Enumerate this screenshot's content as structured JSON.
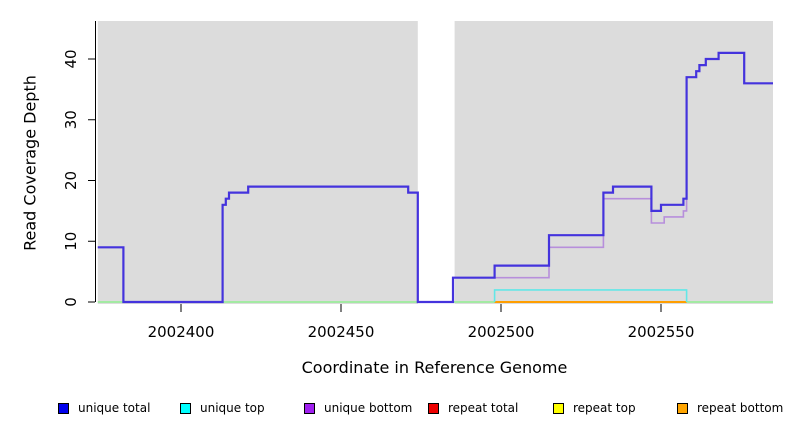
{
  "chart_data": {
    "type": "line",
    "subtype": "step-coverage",
    "title": "",
    "xlabel": "Coordinate in Reference Genome",
    "ylabel": "Read Coverage Depth",
    "xlim": [
      2002374,
      2002585
    ],
    "ylim": [
      0,
      46
    ],
    "x_ticks": [
      2002400,
      2002450,
      2002500,
      2002550
    ],
    "y_ticks": [
      0,
      10,
      20,
      30,
      40
    ],
    "grid": false,
    "panel_background": "#DCDCDC",
    "no_data_region": [
      2002474,
      2002485.5
    ],
    "series": [
      {
        "name": "baseline",
        "color": "#90EE90",
        "width": 1.4,
        "end": 2002585,
        "steps": [
          [
            2002374,
            0
          ]
        ]
      },
      {
        "name": "repeat bottom",
        "color": "#FF9E00",
        "width": 2,
        "end": 2002558,
        "steps": [
          [
            2002498,
            0
          ]
        ]
      },
      {
        "name": "unique top",
        "color": "#63E7E7",
        "width": 1.6,
        "end": 2002558,
        "steps": [
          [
            2002498,
            0
          ],
          [
            2002498,
            2
          ],
          [
            2002558,
            0
          ]
        ]
      },
      {
        "name": "unique bottom",
        "color": "#B78FDB",
        "width": 1.6,
        "end": 2002585,
        "steps": [
          [
            2002374,
            9
          ],
          [
            2002382,
            0
          ],
          [
            2002413,
            16
          ],
          [
            2002414,
            17
          ],
          [
            2002415,
            18
          ],
          [
            2002421,
            19
          ],
          [
            2002471,
            18
          ],
          [
            2002474,
            0
          ],
          [
            2002485,
            4
          ],
          [
            2002515,
            9
          ],
          [
            2002532,
            17
          ],
          [
            2002547,
            13
          ],
          [
            2002551,
            14
          ],
          [
            2002557,
            15
          ],
          [
            2002558,
            37
          ],
          [
            2002561,
            38
          ],
          [
            2002562,
            39
          ],
          [
            2002564,
            40
          ],
          [
            2002568,
            41
          ],
          [
            2002576,
            36
          ]
        ]
      },
      {
        "name": "unique total",
        "color": "#4433DD",
        "width": 2.2,
        "end": 2002585,
        "steps": [
          [
            2002374,
            9
          ],
          [
            2002382,
            0
          ],
          [
            2002413,
            16
          ],
          [
            2002414,
            17
          ],
          [
            2002415,
            18
          ],
          [
            2002421,
            19
          ],
          [
            2002471,
            18
          ],
          [
            2002474,
            0
          ],
          [
            2002485,
            4
          ],
          [
            2002498,
            6
          ],
          [
            2002515,
            11
          ],
          [
            2002532,
            18
          ],
          [
            2002535,
            19
          ],
          [
            2002547,
            15
          ],
          [
            2002550,
            16
          ],
          [
            2002557,
            17
          ],
          [
            2002558,
            37
          ],
          [
            2002561,
            38
          ],
          [
            2002562,
            39
          ],
          [
            2002564,
            40
          ],
          [
            2002568,
            41
          ],
          [
            2002576,
            36
          ]
        ]
      }
    ],
    "legend": [
      {
        "label": "unique total",
        "color": "#0000EE"
      },
      {
        "label": "unique top",
        "color": "#00FFFF"
      },
      {
        "label": "unique bottom",
        "color": "#A020F0"
      },
      {
        "label": "repeat total",
        "color": "#EE0000"
      },
      {
        "label": "repeat top",
        "color": "#FFFF00"
      },
      {
        "label": "repeat bottom",
        "color": "#FFA500"
      }
    ],
    "legend_position": "bottom"
  }
}
